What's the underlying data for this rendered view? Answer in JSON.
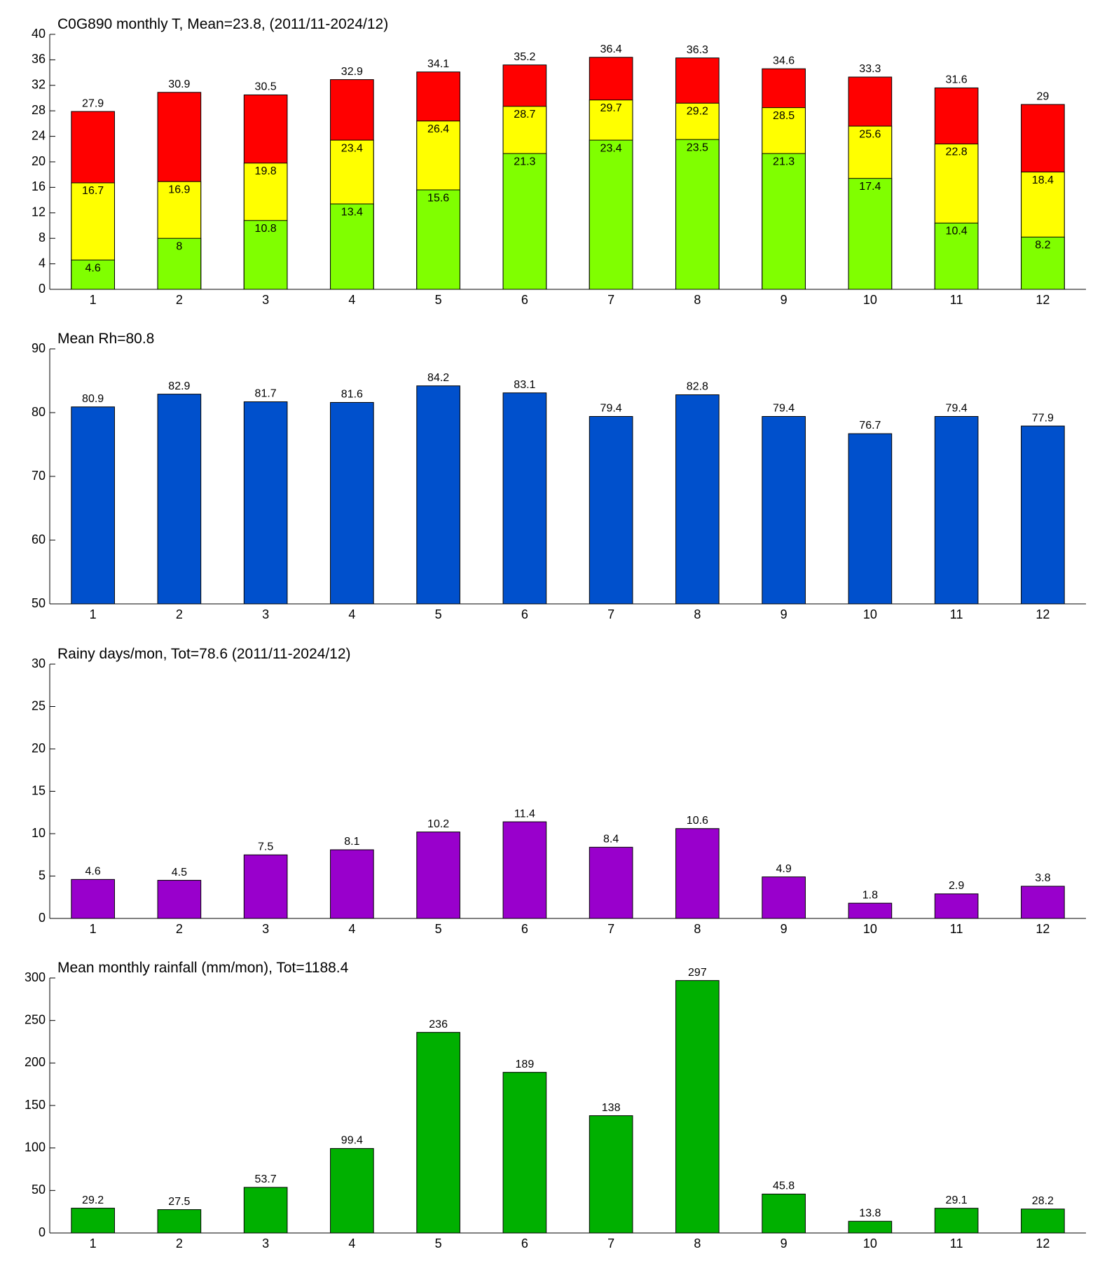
{
  "chart_data": [
    {
      "type": "bar",
      "title": "C0G890 monthly T, Mean=23.8, (2011/11-2024/12)",
      "categories": [
        "1",
        "2",
        "3",
        "4",
        "5",
        "6",
        "7",
        "8",
        "9",
        "10",
        "11",
        "12"
      ],
      "series": [
        {
          "color": "#ff0000",
          "values": [
            27.9,
            30.9,
            30.5,
            32.9,
            34.1,
            35.2,
            36.4,
            36.3,
            34.6,
            33.3,
            31.6,
            29
          ]
        },
        {
          "color": "#ffff00",
          "values": [
            16.7,
            16.9,
            19.8,
            23.4,
            26.4,
            28.7,
            29.7,
            29.2,
            28.5,
            25.6,
            22.8,
            18.4
          ]
        },
        {
          "color": "#80ff00",
          "values": [
            4.6,
            8,
            10.8,
            13.4,
            15.6,
            21.3,
            23.4,
            23.5,
            21.3,
            17.4,
            10.4,
            8.2
          ]
        }
      ],
      "ylim": [
        0,
        40
      ],
      "yticks": [
        0,
        4,
        8,
        12,
        16,
        20,
        24,
        28,
        32,
        36,
        40
      ]
    },
    {
      "type": "bar",
      "title": "Mean Rh=80.8",
      "categories": [
        "1",
        "2",
        "3",
        "4",
        "5",
        "6",
        "7",
        "8",
        "9",
        "10",
        "11",
        "12"
      ],
      "series": [
        {
          "color": "#0050cc",
          "values": [
            80.9,
            82.9,
            81.7,
            81.6,
            84.2,
            83.1,
            79.4,
            82.8,
            79.4,
            76.7,
            79.4,
            77.9
          ]
        }
      ],
      "ylim": [
        50,
        90
      ],
      "yticks": [
        50,
        60,
        70,
        80,
        90
      ]
    },
    {
      "type": "bar",
      "title": "Rainy days/mon, Tot=78.6 (2011/11-2024/12)",
      "categories": [
        "1",
        "2",
        "3",
        "4",
        "5",
        "6",
        "7",
        "8",
        "9",
        "10",
        "11",
        "12"
      ],
      "series": [
        {
          "color": "#9900cc",
          "values": [
            4.6,
            4.5,
            7.5,
            8.1,
            10.2,
            11.4,
            8.4,
            10.6,
            4.9,
            1.8,
            2.9,
            3.8
          ]
        }
      ],
      "ylim": [
        0,
        30
      ],
      "yticks": [
        0,
        5,
        10,
        15,
        20,
        25,
        30
      ]
    },
    {
      "type": "bar",
      "title": "Mean monthly rainfall (mm/mon), Tot=1188.4",
      "categories": [
        "1",
        "2",
        "3",
        "4",
        "5",
        "6",
        "7",
        "8",
        "9",
        "10",
        "11",
        "12"
      ],
      "series": [
        {
          "color": "#00b000",
          "values": [
            29.2,
            27.5,
            53.7,
            99.4,
            236,
            189,
            138,
            297,
            45.8,
            13.8,
            29.1,
            28.2
          ]
        }
      ],
      "ylim": [
        0,
        300
      ],
      "yticks": [
        0,
        50,
        100,
        150,
        200,
        250,
        300
      ]
    }
  ]
}
